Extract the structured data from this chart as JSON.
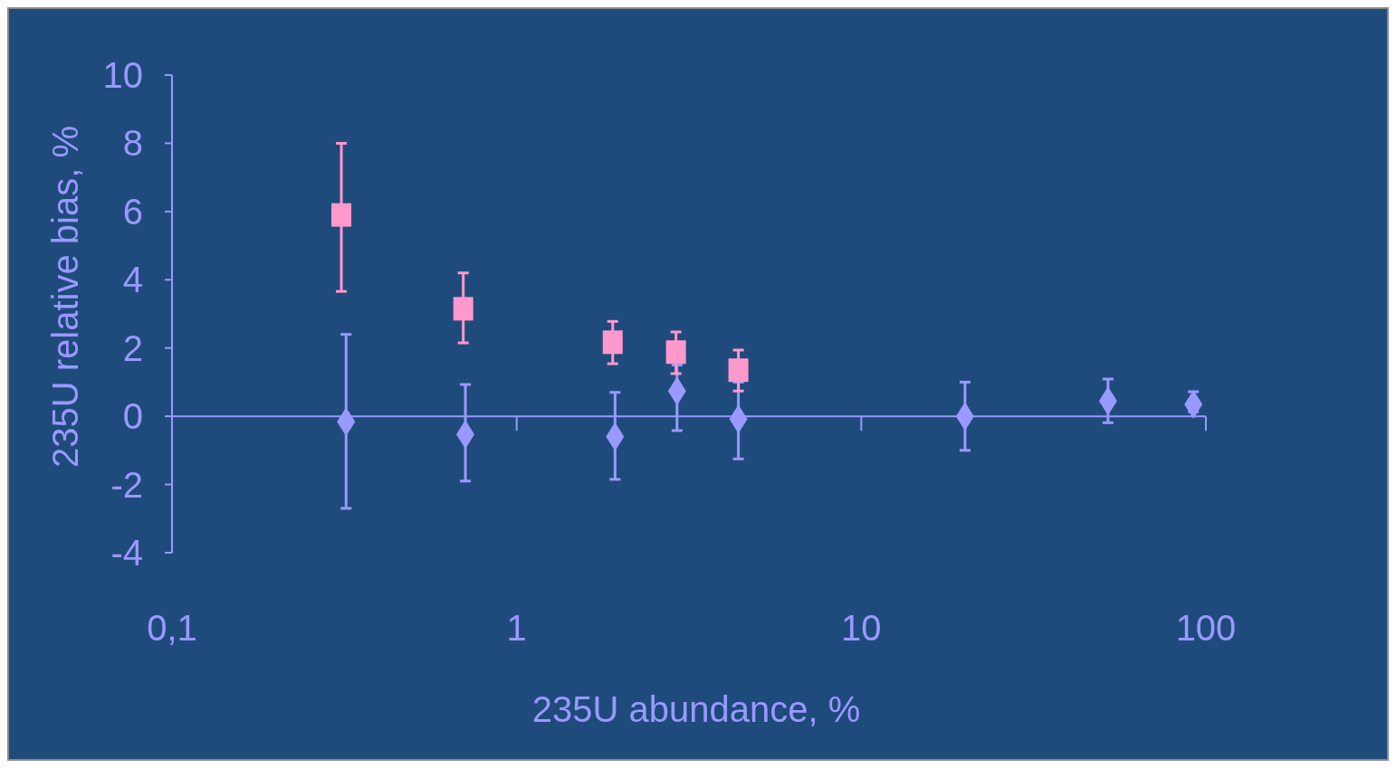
{
  "chart_data": {
    "type": "scatter",
    "xlabel": "235U abundance, %",
    "ylabel": "235U relative bias, %",
    "log": "x",
    "grid": false,
    "ref_lines": [
      {
        "axis": "y",
        "value": 0
      }
    ],
    "xlim": [
      0.1,
      100
    ],
    "xticks": [
      {
        "value": 0.1,
        "label": "0,1"
      },
      1,
      10,
      100
    ],
    "ylim": [
      -4,
      10
    ],
    "yticks": [
      -4,
      -2,
      0,
      2,
      4,
      6,
      8,
      10
    ],
    "series": [
      {
        "color": "#9999ff",
        "marker": "diamond",
        "x": [
          0.32,
          0.71,
          1.93,
          2.92,
          4.4,
          20,
          52,
          92
        ],
        "values": [
          -0.16,
          -0.53,
          -0.6,
          0.74,
          -0.08,
          0,
          0.45,
          0.35
        ],
        "errors": [
          [
            -2.7,
            2.4
          ],
          [
            -1.9,
            0.93
          ],
          [
            -1.85,
            0.7
          ],
          [
            -0.42,
            1.5
          ],
          [
            -1.25,
            1.0
          ],
          [
            -1.0,
            1.0
          ],
          [
            -0.19,
            1.09
          ],
          [
            0.13,
            0.72
          ]
        ]
      },
      {
        "color": "#ff99cc",
        "marker": "square",
        "x": [
          0.31,
          0.7,
          1.9,
          2.9,
          4.4
        ],
        "values": [
          5.9,
          3.15,
          2.17,
          1.88,
          1.35
        ],
        "errors": [
          [
            3.66,
            8.0
          ],
          [
            2.15,
            4.2
          ],
          [
            1.54,
            2.78
          ],
          [
            1.25,
            2.47
          ],
          [
            0.74,
            1.94
          ]
        ]
      }
    ]
  }
}
